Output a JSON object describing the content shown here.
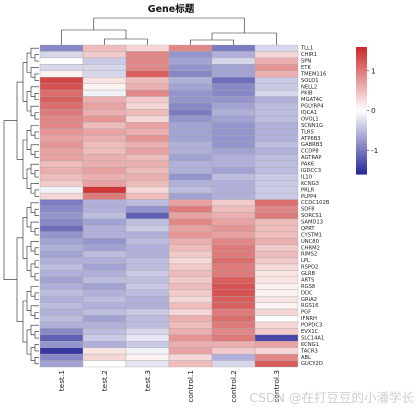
{
  "chart_data": {
    "type": "heatmap",
    "title": "Gene标题",
    "samples": [
      "test.1",
      "test.2",
      "test.3",
      "control.1",
      "control.2",
      "control.3"
    ],
    "genes": [
      "TLL1",
      "CHIR1",
      "SPN",
      "ETK",
      "TMEM116",
      "SOLD1",
      "NELL2",
      "PKIB",
      "MGAT4C",
      "PGLYRP4",
      "IQCA1",
      "OVOL1",
      "SCNN1G",
      "TLR5",
      "ATP6B3",
      "GABRB3",
      "CCDP8",
      "AGTRAP",
      "PAK6",
      "IGDCC3",
      "IL10",
      "KCNG3",
      "PRLR",
      "PLPP4",
      "CCDC102B",
      "SDF8",
      "SORCS1",
      "SAMD13",
      "QPRT",
      "CYSTM1",
      "UNC80",
      "CHRM2",
      "RIMS2",
      "LPL",
      "RSPO2",
      "GLRB",
      "ARTS",
      "RGS8",
      "DDC",
      "GRIA2",
      "RGS16",
      "PGF",
      "IFNRH",
      "POPDC3",
      "EVX1C",
      "SLC14A1",
      "KCNG1",
      "TACR3",
      "ABL",
      "GUCY2D"
    ],
    "values": [
      [
        -0.9,
        0.5,
        0.3,
        0.9,
        -1.0,
        -0.3
      ],
      [
        -0.3,
        0.4,
        0.9,
        -0.8,
        -0.6,
        0.3
      ],
      [
        0.0,
        -0.4,
        0.9,
        -0.7,
        -0.3,
        0.6
      ],
      [
        -0.3,
        -0.3,
        0.9,
        -0.8,
        -0.7,
        0.8
      ],
      [
        0.1,
        -0.3,
        1.2,
        -0.9,
        -0.7,
        0.6
      ],
      [
        1.4,
        0.2,
        0.5,
        -0.6,
        -1.1,
        -0.4
      ],
      [
        1.3,
        0.1,
        0.6,
        -0.7,
        -0.9,
        -0.4
      ],
      [
        1.1,
        -0.1,
        0.9,
        -0.8,
        -0.9,
        -0.3
      ],
      [
        1.2,
        0.6,
        0.4,
        -0.8,
        -0.8,
        -0.6
      ],
      [
        1.1,
        0.7,
        0.3,
        -0.9,
        -0.7,
        -0.5
      ],
      [
        1.0,
        0.6,
        0.5,
        -1.0,
        -0.6,
        -0.5
      ],
      [
        0.9,
        0.8,
        0.3,
        -0.8,
        -0.7,
        -0.5
      ],
      [
        0.9,
        0.5,
        0.7,
        -0.7,
        -0.8,
        -0.6
      ],
      [
        0.8,
        0.7,
        0.6,
        -0.7,
        -0.8,
        -0.6
      ],
      [
        0.7,
        0.6,
        0.8,
        -0.7,
        -0.8,
        -0.6
      ],
      [
        0.8,
        0.5,
        0.6,
        -0.6,
        -0.8,
        -0.5
      ],
      [
        0.7,
        0.5,
        0.7,
        -0.6,
        -0.7,
        -0.6
      ],
      [
        0.7,
        0.6,
        0.5,
        -0.7,
        -0.6,
        -0.5
      ],
      [
        0.5,
        0.6,
        0.6,
        -0.6,
        -0.6,
        -0.5
      ],
      [
        0.6,
        0.7,
        0.5,
        -0.6,
        -0.7,
        -0.5
      ],
      [
        0.5,
        0.6,
        0.6,
        -0.8,
        -0.5,
        -0.4
      ],
      [
        0.4,
        0.7,
        0.5,
        -0.6,
        -0.6,
        -0.4
      ],
      [
        -0.1,
        1.5,
        0.3,
        -0.5,
        -0.6,
        -0.4
      ],
      [
        0.3,
        1.0,
        0.5,
        -0.7,
        -0.6,
        -0.4
      ],
      [
        -1.0,
        -0.6,
        -0.5,
        0.7,
        0.4,
        1.1
      ],
      [
        -0.9,
        -0.6,
        -0.8,
        1.0,
        0.5,
        0.9
      ],
      [
        -0.8,
        -0.5,
        -1.2,
        0.7,
        0.6,
        1.0
      ],
      [
        -0.9,
        -0.7,
        -0.5,
        0.9,
        0.7,
        0.5
      ],
      [
        -1.1,
        -0.6,
        -0.4,
        0.7,
        0.8,
        0.5
      ],
      [
        -0.8,
        -0.6,
        -0.6,
        0.8,
        0.7,
        0.5
      ],
      [
        -0.7,
        -0.8,
        -0.5,
        0.6,
        0.9,
        0.6
      ],
      [
        -0.6,
        -0.7,
        -0.6,
        0.5,
        1.0,
        0.4
      ],
      [
        -0.7,
        -0.5,
        -0.6,
        0.4,
        1.0,
        0.5
      ],
      [
        -0.6,
        -0.6,
        -0.5,
        0.3,
        1.1,
        0.4
      ],
      [
        -0.5,
        -0.7,
        -0.5,
        0.4,
        1.0,
        0.3
      ],
      [
        -0.6,
        -0.6,
        -0.4,
        0.5,
        1.0,
        0.2
      ],
      [
        -0.7,
        -0.5,
        -0.5,
        0.4,
        1.2,
        0.2
      ],
      [
        -0.6,
        -0.7,
        -0.4,
        0.5,
        1.3,
        0.1
      ],
      [
        -0.5,
        -0.6,
        -0.5,
        0.4,
        1.3,
        0.1
      ],
      [
        -0.6,
        -0.5,
        -0.6,
        0.3,
        1.2,
        0.2
      ],
      [
        -0.5,
        -0.6,
        -0.6,
        0.5,
        1.2,
        0.1
      ],
      [
        -0.6,
        -0.5,
        -0.4,
        0.3,
        1.0,
        0.3
      ],
      [
        -0.5,
        -0.7,
        -0.5,
        0.6,
        1.1,
        0.0
      ],
      [
        -0.6,
        -0.6,
        -0.5,
        0.5,
        1.0,
        0.3
      ],
      [
        -0.9,
        -0.5,
        -0.3,
        0.6,
        0.9,
        0.4
      ],
      [
        -1.2,
        -0.4,
        -0.2,
        0.8,
        1.0,
        -1.4
      ],
      [
        -0.8,
        -0.6,
        -0.4,
        0.6,
        0.6,
        0.7
      ],
      [
        -1.5,
        0.2,
        -0.1,
        0.7,
        0.4,
        0.3
      ],
      [
        -0.9,
        0.3,
        0.1,
        0.3,
        -0.6,
        0.9
      ],
      [
        -0.7,
        0.0,
        -0.2,
        0.5,
        -0.3,
        1.2
      ]
    ],
    "color_scale": {
      "low": "#2b2b9b",
      "mid": "#ffffff",
      "high": "#cc2a2a",
      "min": -1.6,
      "max": 1.6
    },
    "legend": {
      "ticks": [
        1,
        0,
        -1
      ],
      "placement": "right"
    },
    "watermark": "CSDN @在打豆豆的小潘学长"
  }
}
